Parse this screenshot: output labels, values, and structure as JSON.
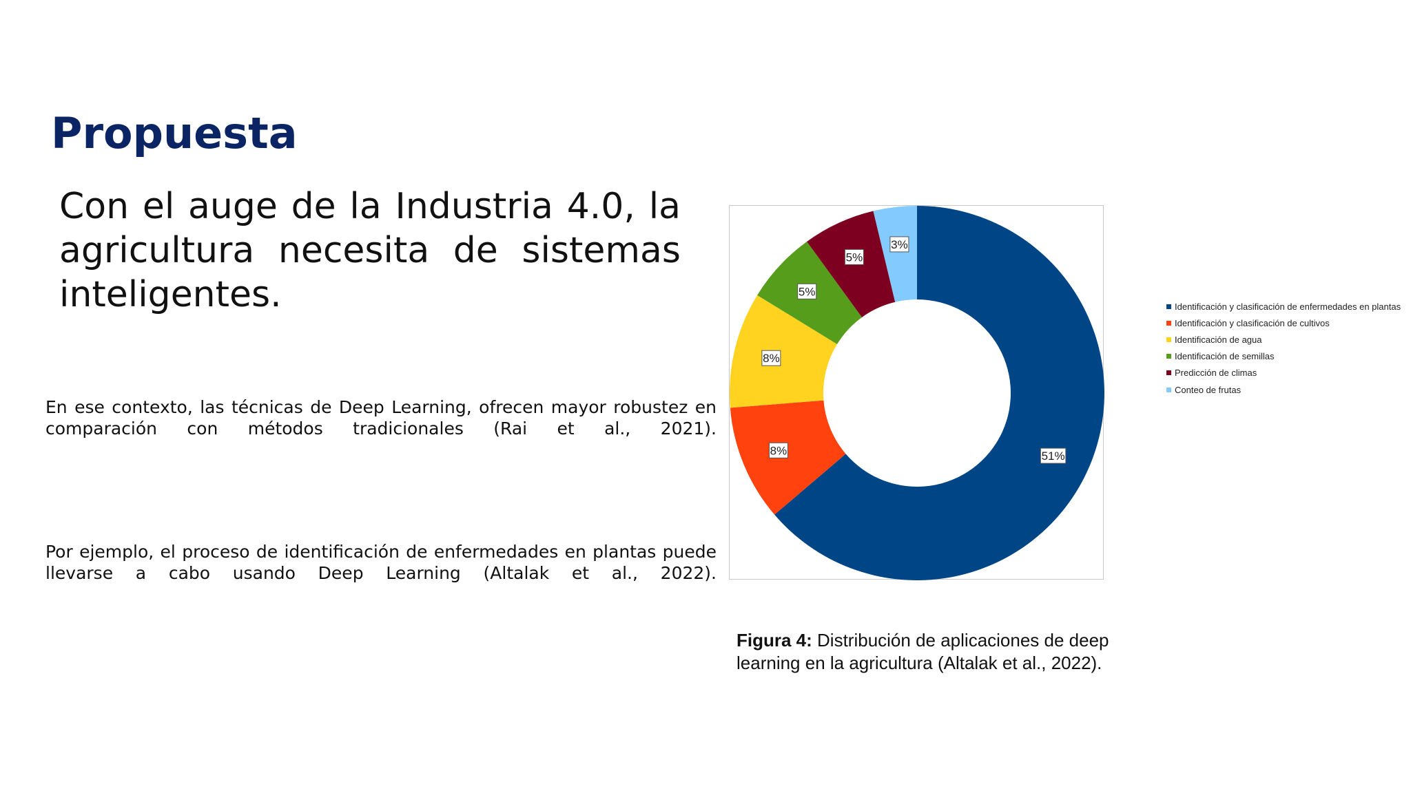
{
  "slide": {
    "title": "Propuesta",
    "headline": "Con el auge de la Industria 4.0, la agricultura necesita de sistemas inteligentes.",
    "paragraph_1": "En ese contexto, las técnicas de Deep Learning, ofrecen mayor robustez en comparación con métodos tradicionales (Rai et al., 2021).",
    "paragraph_2": "Por ejemplo, el proceso de identificación de enfermedades en plantas puede llevarse a cabo usando Deep Learning  (Altalak et al., 2022).",
    "caption_label": "Figura 4:",
    "caption_text": " Distribución de aplicaciones de deep learning en la agricultura (Altalak et al., 2022)."
  },
  "chart_data": {
    "type": "pie",
    "variant": "donut",
    "title": "",
    "legend_position": "right",
    "categories": [
      "Identificación y clasificación de enfermedades en plantas",
      "Identificación y clasificación de cultivos",
      "Identificación de agua",
      "Identificación de semillas",
      "Predicción de climas",
      "Conteo de frutas"
    ],
    "values": [
      51,
      8,
      8,
      5,
      5,
      3
    ],
    "labels": [
      "51%",
      "8%",
      "8%",
      "5%",
      "5%",
      "3%"
    ],
    "colors": [
      "#004586",
      "#ff420e",
      "#ffd320",
      "#579d1c",
      "#7e0021",
      "#83caff"
    ]
  }
}
